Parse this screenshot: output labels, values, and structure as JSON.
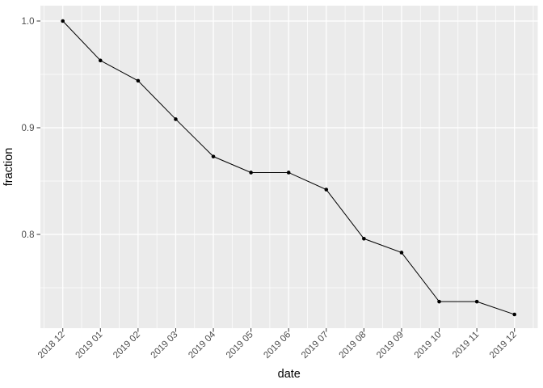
{
  "chart_data": {
    "type": "line",
    "title": "",
    "xlabel": "date",
    "ylabel": "fraction",
    "x_tick_labels": [
      "2018 12",
      "2019 01",
      "2019 02",
      "2019 03",
      "2019 04",
      "2019 05",
      "2019 06",
      "2019 07",
      "2019 08",
      "2019 09",
      "2019 10",
      "2019 11",
      "2019 12"
    ],
    "y_tick_labels": [
      "1.0",
      "0.9",
      "0.8"
    ],
    "y_tick_values": [
      1.0,
      0.9,
      0.8
    ],
    "y_minor_values": [
      0.95,
      0.85,
      0.75
    ],
    "ylim": [
      0.712,
      1.014
    ],
    "grid": "on",
    "legend": "none",
    "series": [
      {
        "name": "fraction",
        "values": [
          1.0,
          0.963,
          0.944,
          0.908,
          0.873,
          0.858,
          0.858,
          0.842,
          0.796,
          0.783,
          0.737,
          0.737,
          0.725
        ]
      }
    ],
    "style": {
      "panel_bg": "#EBEBEB",
      "grid_color": "#FFFFFF",
      "line_color": "#000000",
      "point_color": "#000000",
      "tick_mark_color": "#333333",
      "tick_label_color": "#4D4D4D",
      "axis_title_color": "#000000",
      "x_label_angle": -45
    }
  }
}
